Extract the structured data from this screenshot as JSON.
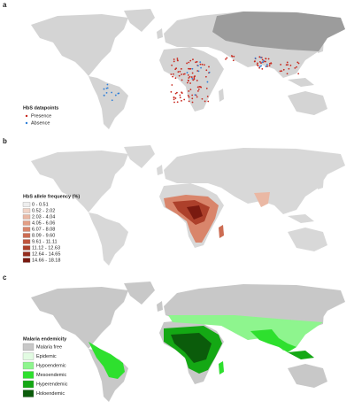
{
  "panels": [
    {
      "label": "a",
      "legend": {
        "title": "HbS datapoints",
        "items": [
          {
            "label": "Presence",
            "color": "#c8281e"
          },
          {
            "label": "Absence",
            "color": "#2f7fd8"
          }
        ]
      }
    },
    {
      "label": "b",
      "legend": {
        "title": "HbS allele frequency (%)",
        "items": [
          {
            "label": "0 - 0.51",
            "color": "#eeeeee"
          },
          {
            "label": "0.52 - 2.02",
            "color": "#f1d3c6"
          },
          {
            "label": "2.03 - 4.04",
            "color": "#eab8a4"
          },
          {
            "label": "4.05 - 6.06",
            "color": "#e39f86"
          },
          {
            "label": "6.07 - 8.08",
            "color": "#d9856b"
          },
          {
            "label": "8.09 - 9.60",
            "color": "#cd6c52"
          },
          {
            "label": "9.61 - 11.11",
            "color": "#bf553d"
          },
          {
            "label": "11.12 - 12.63",
            "color": "#ad402b"
          },
          {
            "label": "12.64 - 14.65",
            "color": "#952c1d"
          },
          {
            "label": "14.66 - 18.18",
            "color": "#7a1a10"
          }
        ]
      }
    },
    {
      "label": "c",
      "legend": {
        "title": "Malaria endemicity",
        "items": [
          {
            "label": "Malaria free",
            "color": "#c8c8c8"
          },
          {
            "label": "Epidemic",
            "color": "#e2fbe2"
          },
          {
            "label": "Hypoendemic",
            "color": "#8ef58e"
          },
          {
            "label": "Mesoendemic",
            "color": "#2ee02e"
          },
          {
            "label": "Hyperendemic",
            "color": "#14a814"
          },
          {
            "label": "Holoendemic",
            "color": "#0b5c0b"
          }
        ]
      }
    }
  ]
}
